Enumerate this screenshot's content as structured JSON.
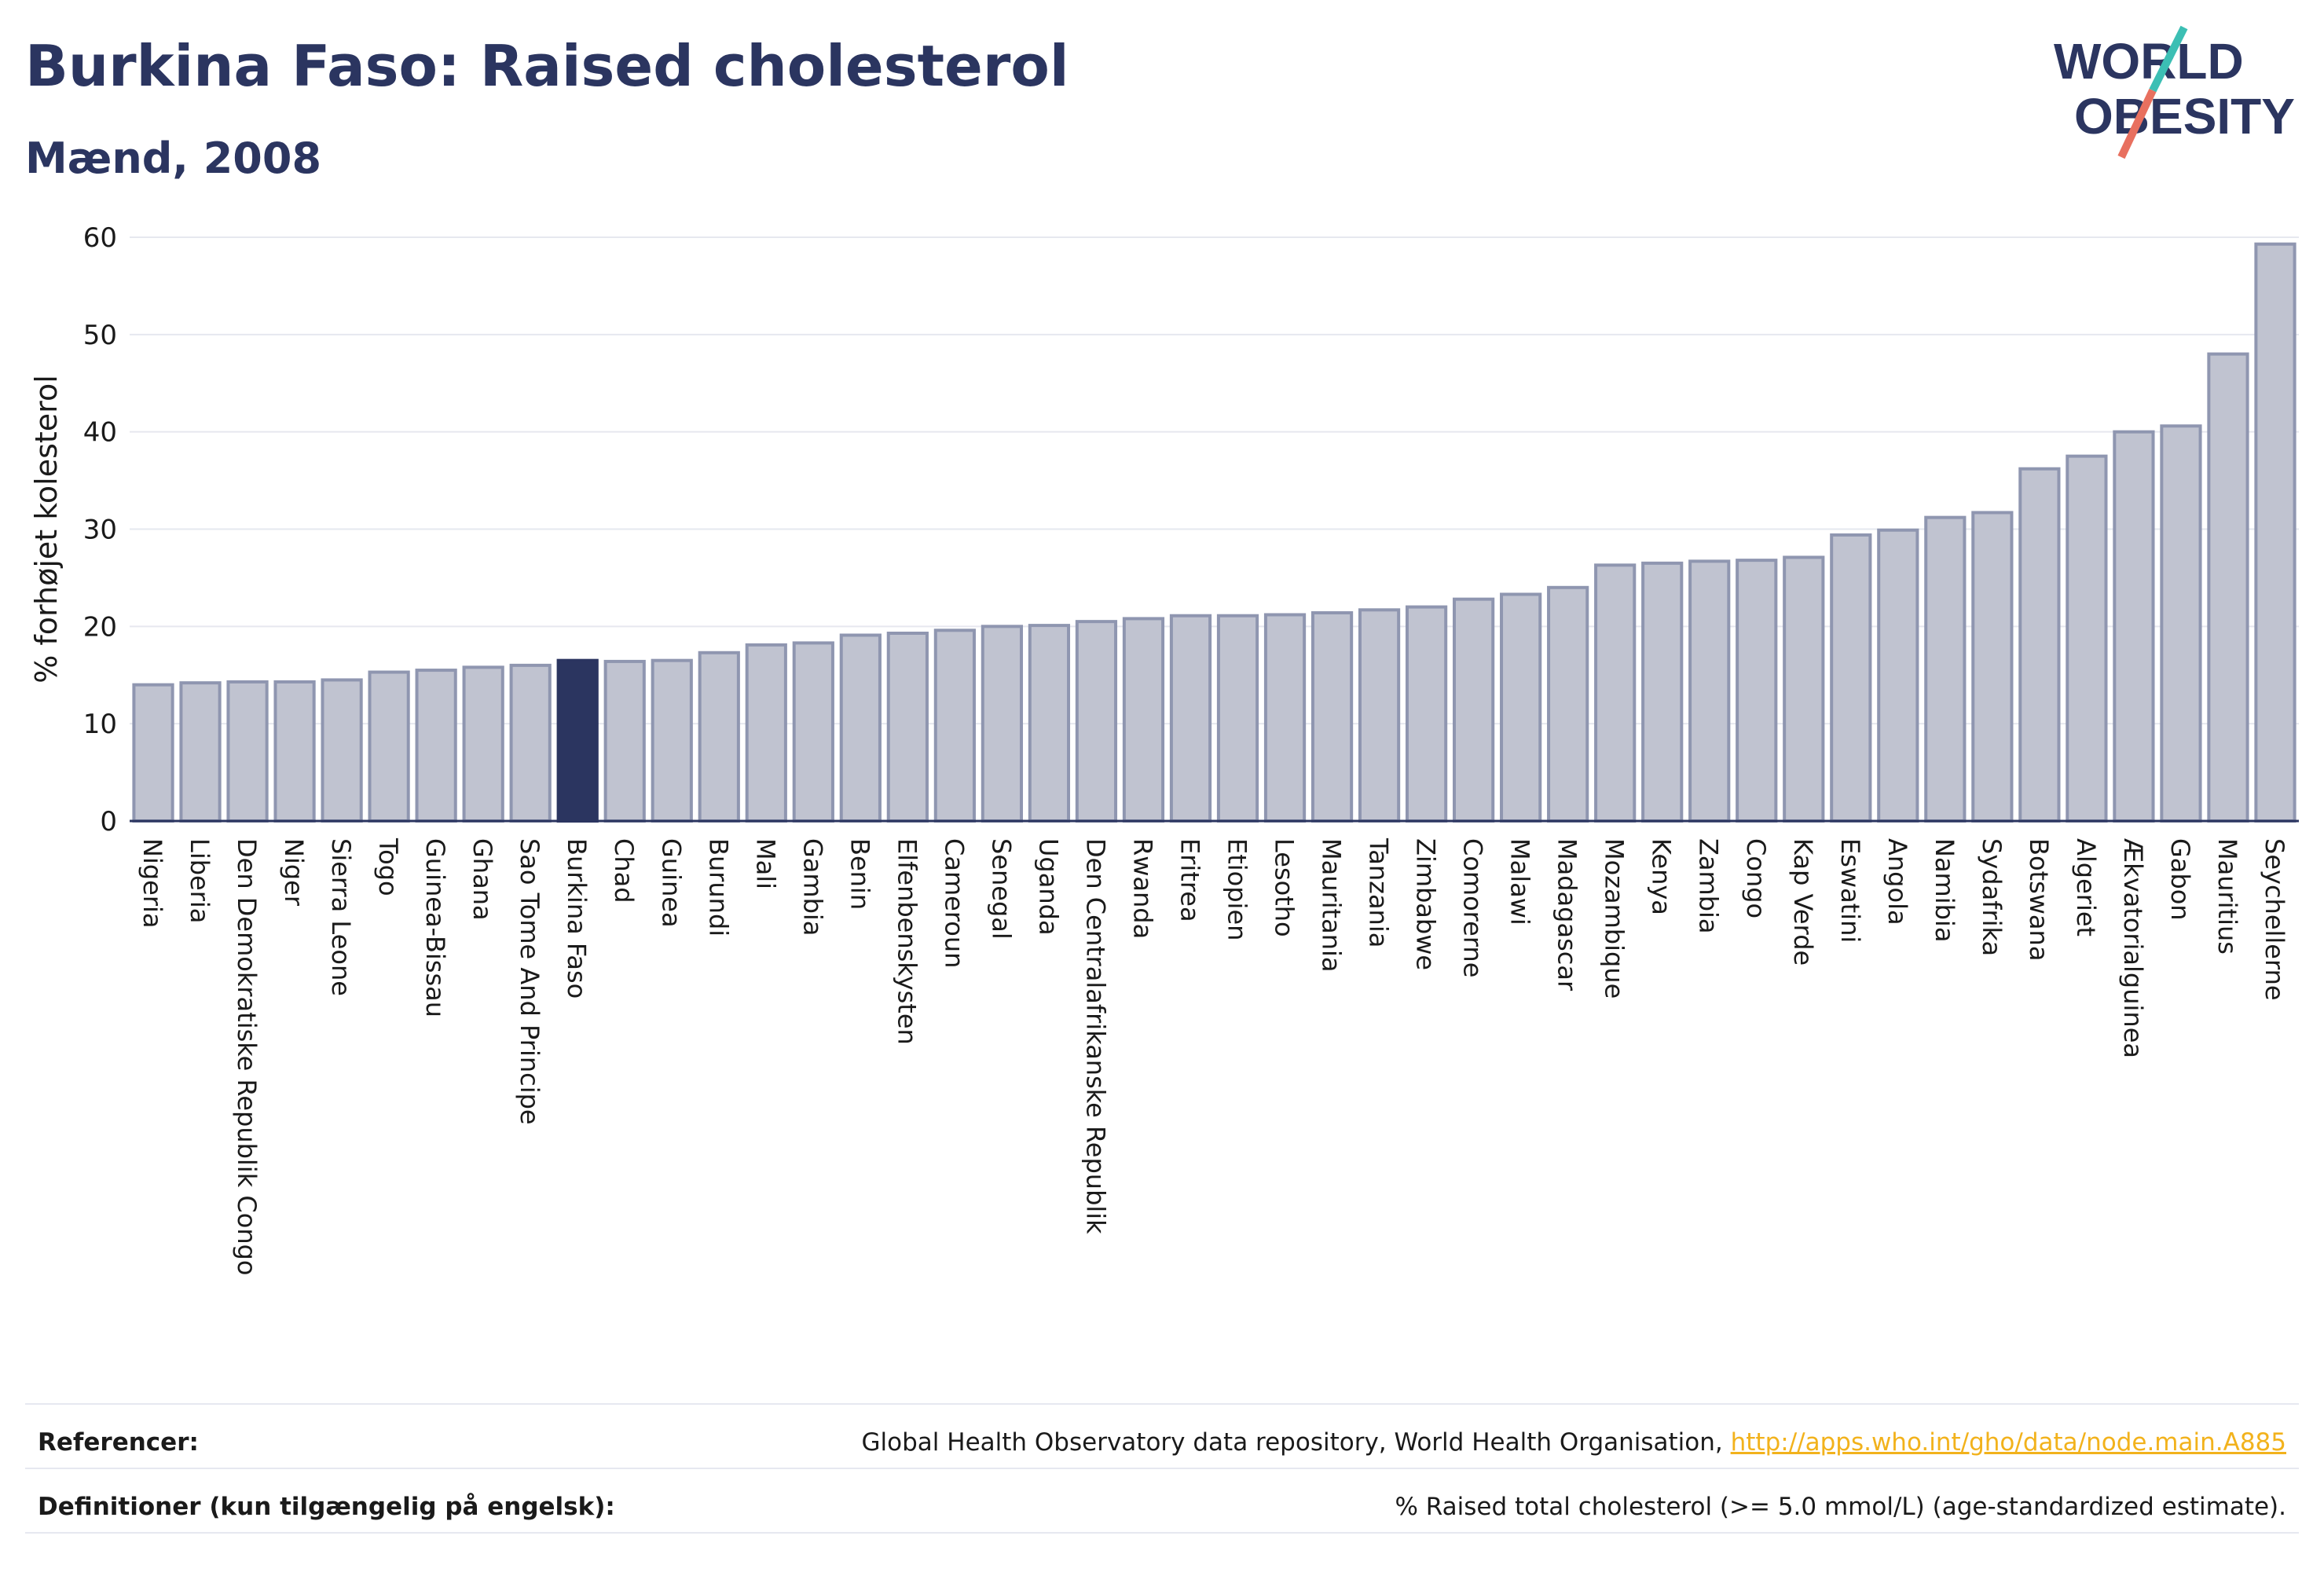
{
  "header": {
    "title": "Burkina Faso: Raised cholesterol",
    "subtitle": "Mænd, 2008"
  },
  "logo": {
    "line1": "WORLD",
    "line2": "OBESITY"
  },
  "colors": {
    "title": "#2b3560",
    "bar": "#c0c3d0",
    "bar_stroke": "#8f96b0",
    "highlight": "#2b3560",
    "link": "#f2b21c",
    "logo_teal": "#3cbfb4",
    "logo_coral": "#e8705f"
  },
  "chart_data": {
    "type": "bar",
    "title": "Burkina Faso: Raised cholesterol",
    "subtitle": "Mænd, 2008",
    "ylabel": "% forhøjet kolesterol",
    "xlabel": "",
    "ylim": [
      0,
      60
    ],
    "yticks": [
      "0",
      "10",
      "20",
      "30",
      "40",
      "50",
      "60"
    ],
    "highlight": "Burkina Faso",
    "grid": true,
    "categories": [
      "Nigeria",
      "Liberia",
      "Den Demokratiske Republik Congo",
      "Niger",
      "Sierra Leone",
      "Togo",
      "Guinea-Bissau",
      "Ghana",
      "Sao Tome And Principe",
      "Burkina Faso",
      "Chad",
      "Guinea",
      "Burundi",
      "Mali",
      "Gambia",
      "Benin",
      "Elfenbenskysten",
      "Cameroun",
      "Senegal",
      "Uganda",
      "Den Centralafrikanske Republik",
      "Rwanda",
      "Eritrea",
      "Etiopien",
      "Lesotho",
      "Mauritania",
      "Tanzania",
      "Zimbabwe",
      "Comorerne",
      "Malawi",
      "Madagascar",
      "Mozambique",
      "Kenya",
      "Zambia",
      "Congo",
      "Kap Verde",
      "Eswatini",
      "Angola",
      "Namibia",
      "Sydafrika",
      "Botswana",
      "Algeriet",
      "Ækvatorialguinea",
      "Gabon",
      "Mauritius",
      "Seychellerne"
    ],
    "values": [
      14.0,
      14.2,
      14.3,
      14.3,
      14.5,
      15.3,
      15.5,
      15.8,
      16.0,
      16.5,
      16.4,
      16.5,
      17.3,
      18.1,
      18.3,
      19.1,
      19.3,
      19.6,
      20.0,
      20.1,
      20.5,
      20.8,
      21.1,
      21.1,
      21.2,
      21.4,
      21.7,
      22.0,
      22.8,
      23.3,
      24.0,
      26.3,
      26.5,
      26.7,
      26.8,
      27.1,
      29.4,
      29.9,
      31.2,
      31.7,
      36.2,
      37.5,
      40.0,
      40.6,
      48.0,
      59.3
    ]
  },
  "footer": {
    "ref_label": "Referencer:",
    "ref_text": "Global Health Observatory data repository, World Health Organisation, ",
    "ref_link": "http://apps.who.int/gho/data/node.main.A885",
    "def_label": "Definitioner (kun tilgængelig på engelsk):",
    "def_text": "% Raised total cholesterol (>= 5.0 mmol/L) (age-standardized estimate)."
  }
}
